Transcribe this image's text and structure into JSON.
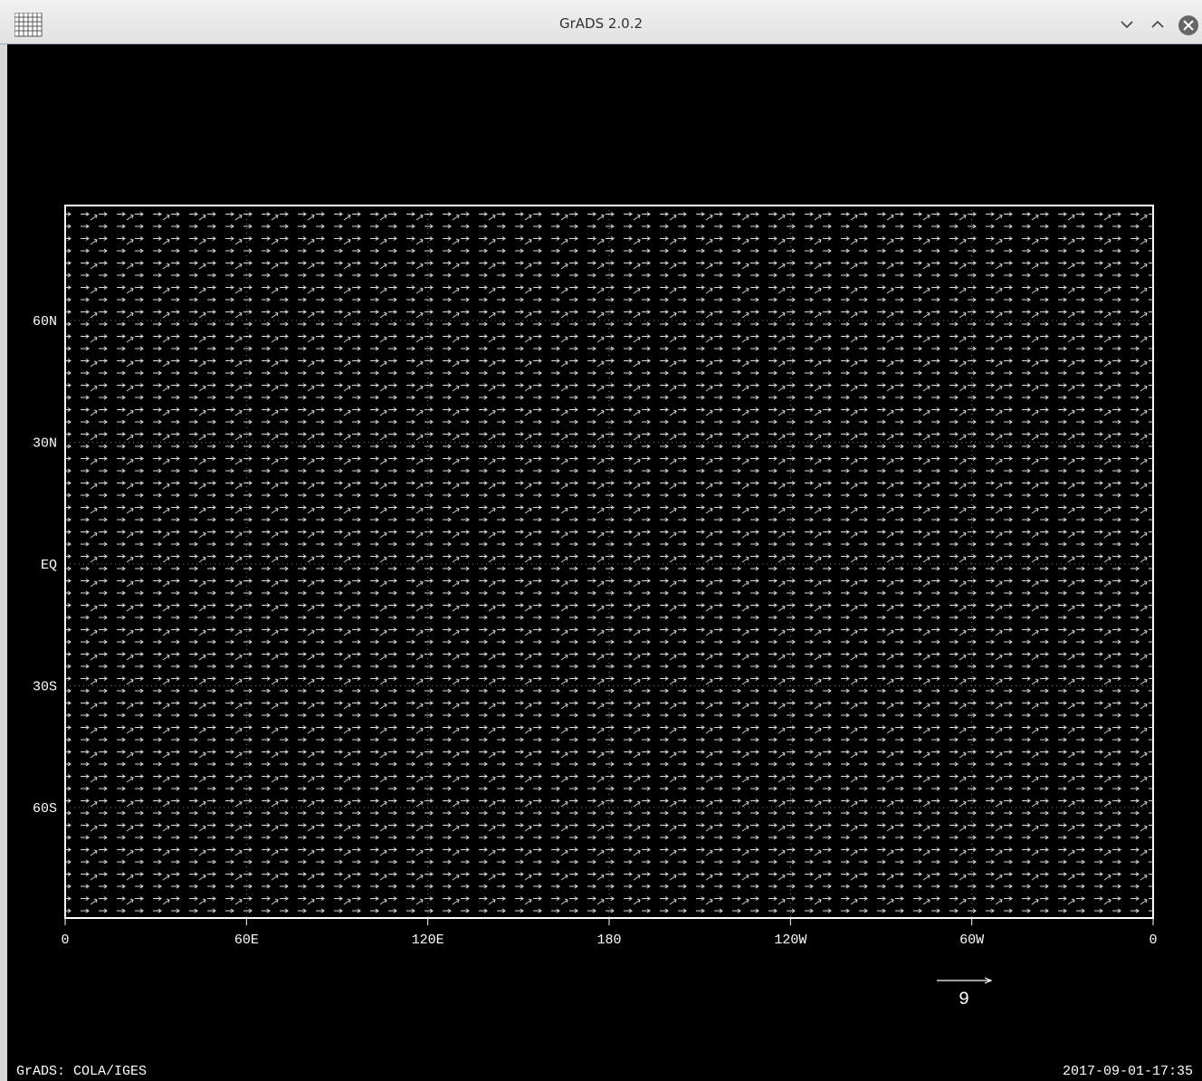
{
  "window": {
    "title": "GrADS 2.0.2"
  },
  "plot": {
    "y_labels": [
      "60N",
      "30N",
      "EQ",
      "30S",
      "60S"
    ],
    "x_labels": [
      "0",
      "60E",
      "120E",
      "180",
      "120W",
      "60W",
      "0"
    ],
    "reference_vector_label": "9"
  },
  "footer": {
    "left": "GrADS: COLA/IGES",
    "right": "2017-09-01-17:35"
  }
}
